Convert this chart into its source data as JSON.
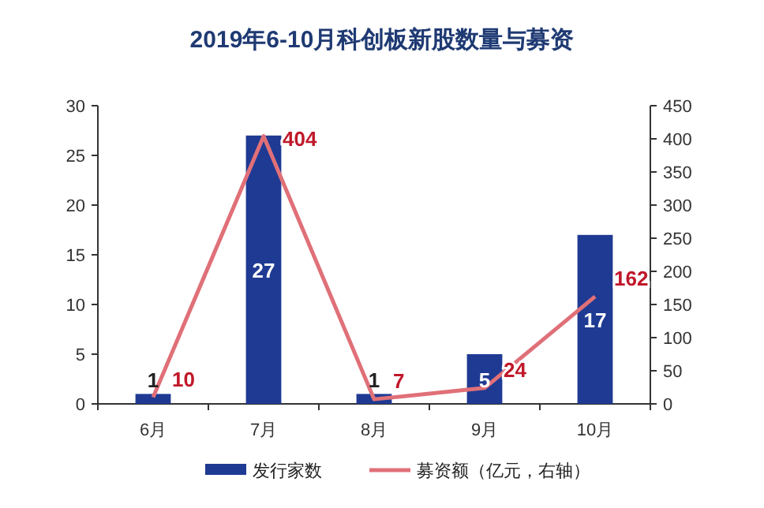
{
  "chart_data": {
    "type": "bar",
    "title": "2019年6-10月科创板新股数量与募资",
    "categories": [
      "6月",
      "7月",
      "8月",
      "9月",
      "10月"
    ],
    "series": [
      {
        "name": "发行家数",
        "color": "#1f3a93",
        "values": [
          1,
          27,
          1,
          5,
          17
        ]
      },
      {
        "name": "募资额（亿元，右轴）",
        "type": "line",
        "axis": "y2",
        "color": "#e07078",
        "values": [
          10,
          404,
          7,
          24,
          162
        ]
      }
    ],
    "ylim": [
      0,
      30
    ],
    "yticks": [
      0,
      5,
      10,
      15,
      20,
      25,
      30
    ],
    "y2lim": [
      0,
      450
    ],
    "y2ticks": [
      0,
      50,
      100,
      150,
      200,
      250,
      300,
      350,
      400,
      450
    ],
    "data_labels": true,
    "legend": "bottom",
    "grid": false,
    "marker": "none"
  }
}
